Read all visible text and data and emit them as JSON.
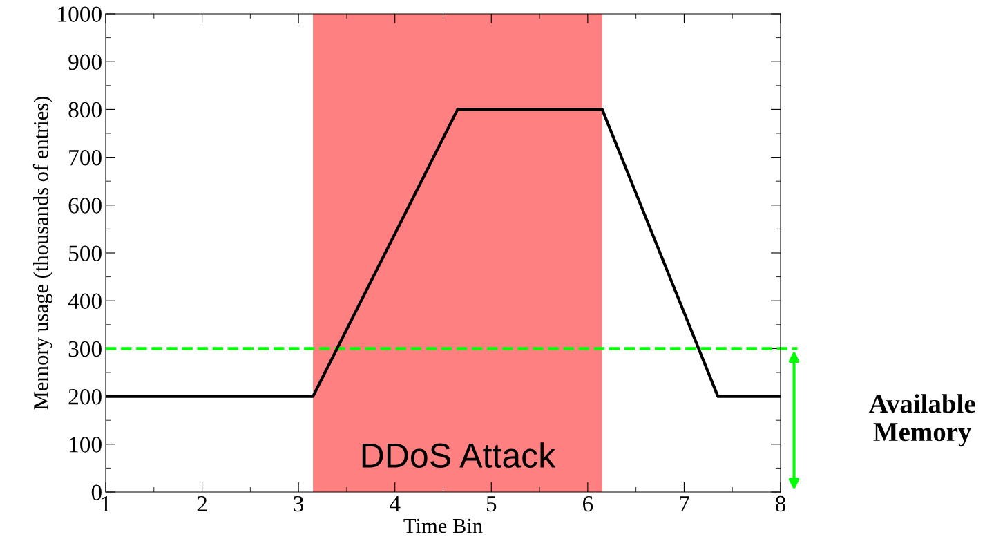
{
  "chart_data": {
    "type": "line",
    "xlabel": "Time Bin",
    "ylabel": "Memory usage (thousands of entries)",
    "x": [
      1,
      3.15,
      4.65,
      6.15,
      7.35,
      8
    ],
    "series": [
      {
        "color": "#000000",
        "values": [
          200,
          200,
          800,
          800,
          200,
          200
        ]
      }
    ],
    "xlim": [
      1,
      8
    ],
    "xticks": [
      1,
      2,
      3,
      4,
      5,
      6,
      7,
      8
    ],
    "ylim": [
      0,
      1000
    ],
    "yticks": [
      0,
      100,
      200,
      300,
      400,
      500,
      600,
      700,
      800,
      900,
      1000
    ],
    "bands": [
      {
        "axis": "x",
        "from": 3.15,
        "to": 6.15,
        "label": "DDoS Attack",
        "color": "#ff8080"
      }
    ],
    "ref_lines": [
      {
        "axis": "y",
        "value": 300,
        "color": "#00ff00",
        "line_style": "dashed"
      }
    ],
    "annotations": [
      "Available\nMemory"
    ],
    "grid": false,
    "legend": false,
    "marker": "none",
    "line_style": "solid"
  }
}
